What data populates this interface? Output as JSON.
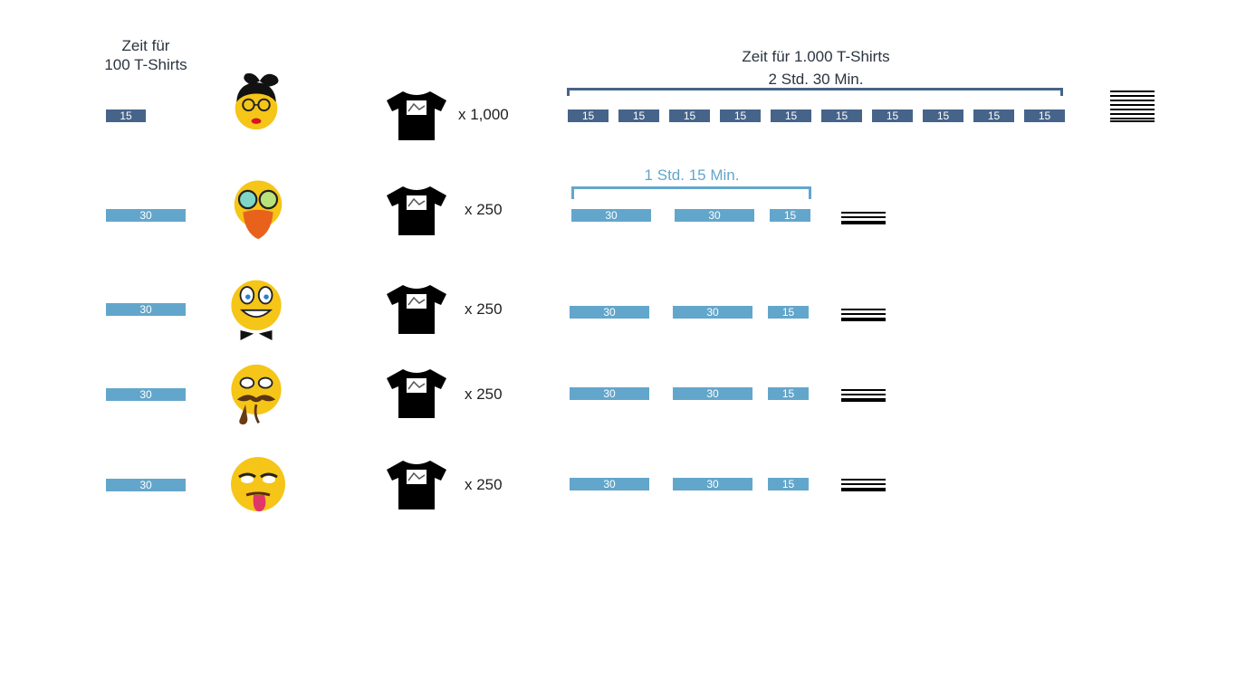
{
  "header": {
    "left_line1": "Zeit für",
    "left_line2": "100 T-Shirts",
    "total_line1": "Zeit für 1.000 T-Shirts",
    "total_line2": "2 Std. 30 Min.",
    "subtotal": "1 Std. 15 Min."
  },
  "colors": {
    "dark_bar": "#46648a",
    "light_bar": "#63a6cb"
  },
  "rows": [
    {
      "person": "woman-with-bow-and-glasses",
      "rate_label": "15",
      "quantity": "x 1,000",
      "segments": [
        "15",
        "15",
        "15",
        "15",
        "15",
        "15",
        "15",
        "15",
        "15",
        "15"
      ]
    },
    {
      "person": "bearded-rainbow-glasses",
      "rate_label": "30",
      "quantity": "x 250",
      "segments": [
        "30",
        "30",
        "15"
      ]
    },
    {
      "person": "grinning-bowtie",
      "rate_label": "30",
      "quantity": "x 250",
      "segments": [
        "30",
        "30",
        "15"
      ]
    },
    {
      "person": "mustache-pipe",
      "rate_label": "30",
      "quantity": "x 250",
      "segments": [
        "30",
        "30",
        "15"
      ]
    },
    {
      "person": "tongue-out",
      "rate_label": "30",
      "quantity": "x 250",
      "segments": [
        "30",
        "30",
        "15"
      ]
    }
  ]
}
